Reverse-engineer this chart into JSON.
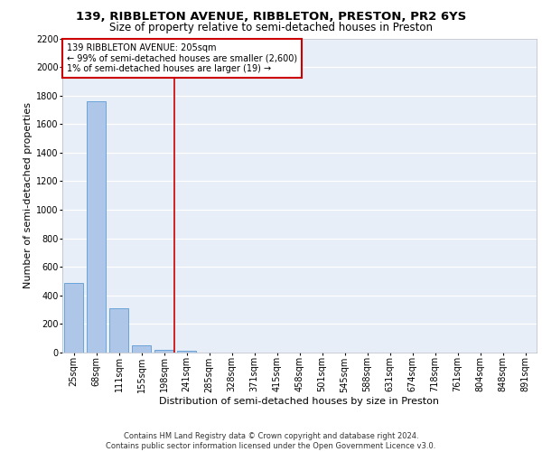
{
  "title1": "139, RIBBLETON AVENUE, RIBBLETON, PRESTON, PR2 6YS",
  "title2": "Size of property relative to semi-detached houses in Preston",
  "xlabel": "Distribution of semi-detached houses by size in Preston",
  "ylabel": "Number of semi-detached properties",
  "categories": [
    "25sqm",
    "68sqm",
    "111sqm",
    "155sqm",
    "198sqm",
    "241sqm",
    "285sqm",
    "328sqm",
    "371sqm",
    "415sqm",
    "458sqm",
    "501sqm",
    "545sqm",
    "588sqm",
    "631sqm",
    "674sqm",
    "718sqm",
    "761sqm",
    "804sqm",
    "848sqm",
    "891sqm"
  ],
  "values": [
    490,
    1760,
    310,
    50,
    20,
    15,
    0,
    0,
    0,
    0,
    0,
    0,
    0,
    0,
    0,
    0,
    0,
    0,
    0,
    0,
    0
  ],
  "bar_color": "#aec6e8",
  "bar_edgecolor": "#5b9bd5",
  "redline_x": 4.45,
  "redline_color": "#cc0000",
  "annotation_text": "139 RIBBLETON AVENUE: 205sqm\n← 99% of semi-detached houses are smaller (2,600)\n1% of semi-detached houses are larger (19) →",
  "annotation_box_edgecolor": "#cc0000",
  "annotation_box_facecolor": "#ffffff",
  "footer": "Contains HM Land Registry data © Crown copyright and database right 2024.\nContains public sector information licensed under the Open Government Licence v3.0.",
  "ylim": [
    0,
    2200
  ],
  "yticks": [
    0,
    200,
    400,
    600,
    800,
    1000,
    1200,
    1400,
    1600,
    1800,
    2000,
    2200
  ],
  "background_color": "#e8eef7",
  "grid_color": "#ffffff",
  "title_fontsize": 9.5,
  "subtitle_fontsize": 8.5,
  "ylabel_fontsize": 8,
  "xlabel_fontsize": 8,
  "tick_fontsize": 7,
  "annotation_fontsize": 7,
  "footer_fontsize": 6
}
